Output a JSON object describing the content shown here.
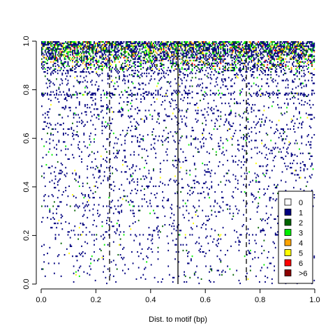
{
  "chart_data": {
    "type": "heatmap",
    "title": "",
    "xlabel": "Dist. to motif (bp)",
    "ylabel": "",
    "xlim": [
      0,
      1
    ],
    "ylim": [
      0,
      1
    ],
    "x_ticks": [
      "0.0",
      "0.2",
      "0.4",
      "0.6",
      "0.8",
      "1.0"
    ],
    "y_ticks": [
      "0.0",
      "0.2",
      "0.4",
      "0.6",
      "0.8",
      "1.0"
    ],
    "grid": false,
    "legend_position": "bottom-right",
    "legend": [
      {
        "label": "0",
        "color": "#FFFFFF"
      },
      {
        "label": "1",
        "color": "#00007F"
      },
      {
        "label": "2",
        "color": "#006400"
      },
      {
        "label": "3",
        "color": "#00EE00"
      },
      {
        "label": "4",
        "color": "#FFA500"
      },
      {
        "label": "5",
        "color": "#FFFF00"
      },
      {
        "label": "6",
        "color": "#FF0000"
      },
      {
        "label": ">6",
        "color": "#8B0000"
      }
    ],
    "reference_lines": [
      {
        "x": 0.25,
        "style": "dashed"
      },
      {
        "x": 0.5,
        "style": "solid"
      },
      {
        "x": 0.75,
        "style": "dashed"
      }
    ],
    "grid_size": {
      "columns": 240,
      "rows": 170
    },
    "density_profile": [
      {
        "y": 0.0,
        "fraction_nonzero": 0.03
      },
      {
        "y": 0.85,
        "fraction_nonzero": 0.09
      },
      {
        "y": 0.9,
        "fraction_nonzero": 0.35
      },
      {
        "y": 1.0,
        "fraction_nonzero": 0.75
      }
    ]
  }
}
